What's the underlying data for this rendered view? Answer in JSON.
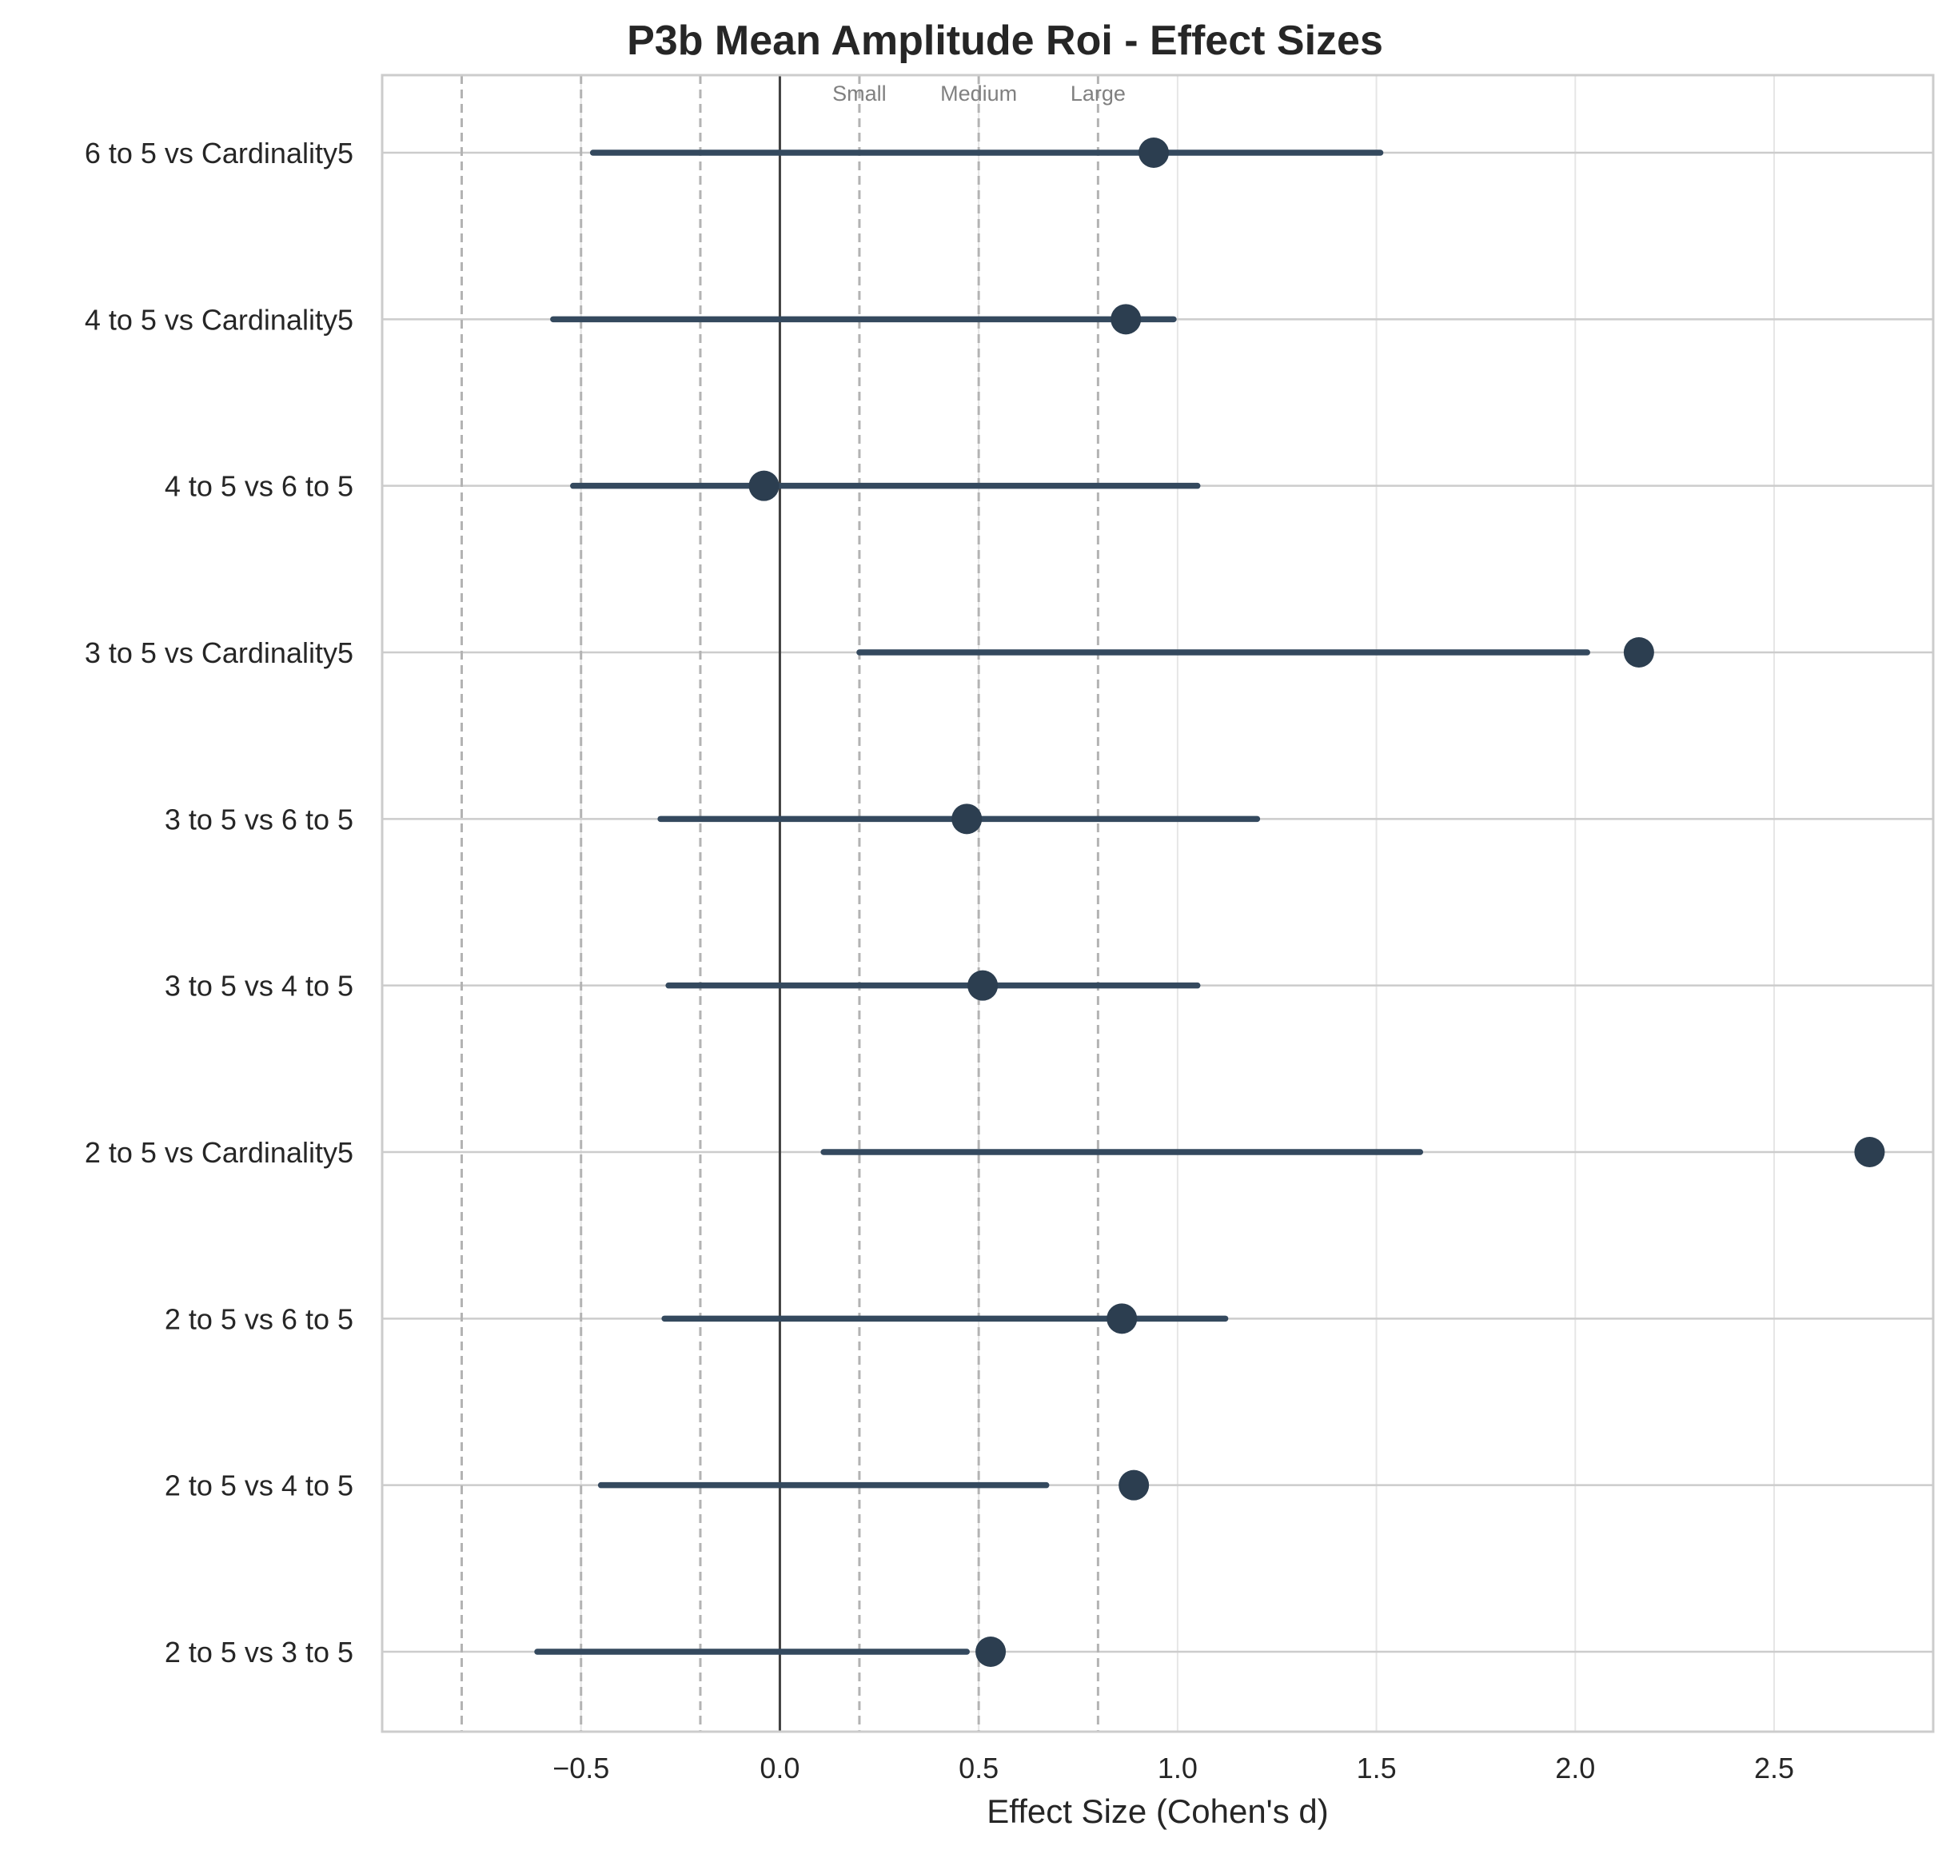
{
  "chart_data": {
    "type": "forest",
    "title": "P3b Mean Amplitude Roi - Effect Sizes",
    "xlabel": "Effect Size (Cohen's d)",
    "ylabel": "",
    "xlim": [
      -1.0,
      2.9
    ],
    "xticks": [
      -0.5,
      0.0,
      0.5,
      1.0,
      1.5,
      2.0,
      2.5
    ],
    "xtick_labels": [
      "−0.5",
      "0.0",
      "0.5",
      "1.0",
      "1.5",
      "2.0",
      "2.5"
    ],
    "grid": true,
    "zero_line": 0.0,
    "reference_lines": [
      {
        "value": -0.8,
        "label": ""
      },
      {
        "value": -0.5,
        "label": ""
      },
      {
        "value": -0.2,
        "label": ""
      },
      {
        "value": 0.2,
        "label": "Small"
      },
      {
        "value": 0.5,
        "label": "Medium"
      },
      {
        "value": 0.8,
        "label": "Large"
      }
    ],
    "comparisons": [
      {
        "label": "6 to 5 vs Cardinality5",
        "d": 0.94,
        "ci_low": -0.47,
        "ci_high": 1.51
      },
      {
        "label": "4 to 5 vs Cardinality5",
        "d": 0.87,
        "ci_low": -0.57,
        "ci_high": 0.99
      },
      {
        "label": "4 to 5 vs 6 to 5",
        "d": -0.04,
        "ci_low": -0.52,
        "ci_high": 1.05
      },
      {
        "label": "3 to 5 vs Cardinality5",
        "d": 2.16,
        "ci_low": 0.2,
        "ci_high": 2.03
      },
      {
        "label": "3 to 5 vs 6 to 5",
        "d": 0.47,
        "ci_low": -0.3,
        "ci_high": 1.2
      },
      {
        "label": "3 to 5 vs 4 to 5",
        "d": 0.51,
        "ci_low": -0.28,
        "ci_high": 1.05
      },
      {
        "label": "2 to 5 vs Cardinality5",
        "d": 2.74,
        "ci_low": 0.11,
        "ci_high": 1.61
      },
      {
        "label": "2 to 5 vs 6 to 5",
        "d": 0.86,
        "ci_low": -0.29,
        "ci_high": 1.12
      },
      {
        "label": "2 to 5 vs 4 to 5",
        "d": 0.89,
        "ci_low": -0.45,
        "ci_high": 0.67
      },
      {
        "label": "2 to 5 vs 3 to 5",
        "d": 0.53,
        "ci_low": -0.61,
        "ci_high": 0.47
      }
    ],
    "colors": {
      "point": "#2c3e50",
      "ci_line": "#34495e",
      "ref_line": "#b3b3b3",
      "zero_line": "#404040",
      "grid": "#e6e6e6",
      "row_line": "#cccccc",
      "frame": "#cccccc"
    }
  }
}
